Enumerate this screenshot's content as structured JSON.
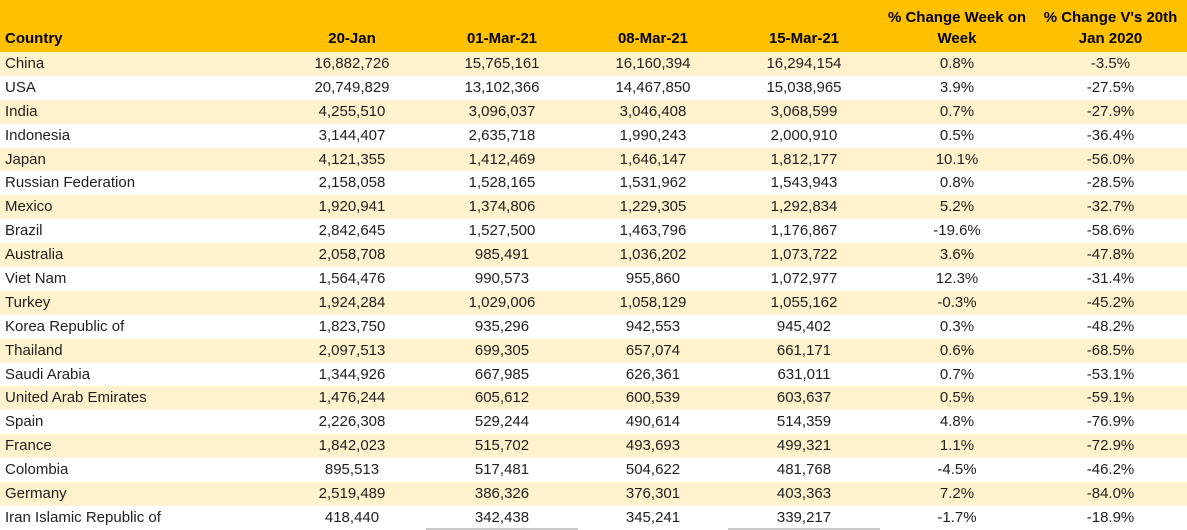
{
  "colors": {
    "header_bg": "#FFC000",
    "row_alt_bg": "#FFF2CC",
    "row_bg": "#FFFFFF",
    "text": "#1F1F1F",
    "header_text": "#000000",
    "partial_border": "#C9C9C9"
  },
  "chart_data": {
    "type": "table",
    "columns": [
      {
        "key": "country",
        "label": "Country",
        "lines": [
          "Country"
        ]
      },
      {
        "key": "20-jan",
        "label": "20-Jan",
        "lines": [
          "20-Jan"
        ]
      },
      {
        "key": "01-mar-21",
        "label": "01-Mar-21",
        "lines": [
          "01-Mar-21"
        ]
      },
      {
        "key": "08-mar-21",
        "label": "08-Mar-21",
        "lines": [
          "08-Mar-21"
        ]
      },
      {
        "key": "15-mar-21",
        "label": "15-Mar-21",
        "lines": [
          "15-Mar-21"
        ]
      },
      {
        "key": "pct-change-week-on-week",
        "label": "% Change Week on Week",
        "lines": [
          "% Change Week on",
          "Week"
        ]
      },
      {
        "key": "pct-change-vs-20-jan-2020",
        "label": "% Change V's 20th Jan 2020",
        "lines": [
          "% Change V's 20th",
          "Jan 2020"
        ]
      }
    ],
    "rows": [
      [
        "China",
        "16,882,726",
        "15,765,161",
        "16,160,394",
        "16,294,154",
        "0.8%",
        "-3.5%"
      ],
      [
        "USA",
        "20,749,829",
        "13,102,366",
        "14,467,850",
        "15,038,965",
        "3.9%",
        "-27.5%"
      ],
      [
        "India",
        "4,255,510",
        "3,096,037",
        "3,046,408",
        "3,068,599",
        "0.7%",
        "-27.9%"
      ],
      [
        "Indonesia",
        "3,144,407",
        "2,635,718",
        "1,990,243",
        "2,000,910",
        "0.5%",
        "-36.4%"
      ],
      [
        "Japan",
        "4,121,355",
        "1,412,469",
        "1,646,147",
        "1,812,177",
        "10.1%",
        "-56.0%"
      ],
      [
        "Russian Federation",
        "2,158,058",
        "1,528,165",
        "1,531,962",
        "1,543,943",
        "0.8%",
        "-28.5%"
      ],
      [
        "Mexico",
        "1,920,941",
        "1,374,806",
        "1,229,305",
        "1,292,834",
        "5.2%",
        "-32.7%"
      ],
      [
        "Brazil",
        "2,842,645",
        "1,527,500",
        "1,463,796",
        "1,176,867",
        "-19.6%",
        "-58.6%"
      ],
      [
        "Australia",
        "2,058,708",
        "985,491",
        "1,036,202",
        "1,073,722",
        "3.6%",
        "-47.8%"
      ],
      [
        "Viet Nam",
        "1,564,476",
        "990,573",
        "955,860",
        "1,072,977",
        "12.3%",
        "-31.4%"
      ],
      [
        "Turkey",
        "1,924,284",
        "1,029,006",
        "1,058,129",
        "1,055,162",
        "-0.3%",
        "-45.2%"
      ],
      [
        "Korea Republic of",
        "1,823,750",
        "935,296",
        "942,553",
        "945,402",
        "0.3%",
        "-48.2%"
      ],
      [
        "Thailand",
        "2,097,513",
        "699,305",
        "657,074",
        "661,171",
        "0.6%",
        "-68.5%"
      ],
      [
        "Saudi Arabia",
        "1,344,926",
        "667,985",
        "626,361",
        "631,011",
        "0.7%",
        "-53.1%"
      ],
      [
        "United Arab Emirates",
        "1,476,244",
        "605,612",
        "600,539",
        "603,637",
        "0.5%",
        "-59.1%"
      ],
      [
        "Spain",
        "2,226,308",
        "529,244",
        "490,614",
        "514,359",
        "4.8%",
        "-76.9%"
      ],
      [
        "France",
        "1,842,023",
        "515,702",
        "493,693",
        "499,321",
        "1.1%",
        "-72.9%"
      ],
      [
        "Colombia",
        "895,513",
        "517,481",
        "504,622",
        "481,768",
        "-4.5%",
        "-46.2%"
      ],
      [
        "Germany",
        "2,519,489",
        "386,326",
        "376,301",
        "403,363",
        "7.2%",
        "-84.0%"
      ],
      [
        "Iran Islamic Republic of",
        "418,440",
        "342,438",
        "345,241",
        "339,217",
        "-1.7%",
        "-18.9%"
      ]
    ]
  }
}
